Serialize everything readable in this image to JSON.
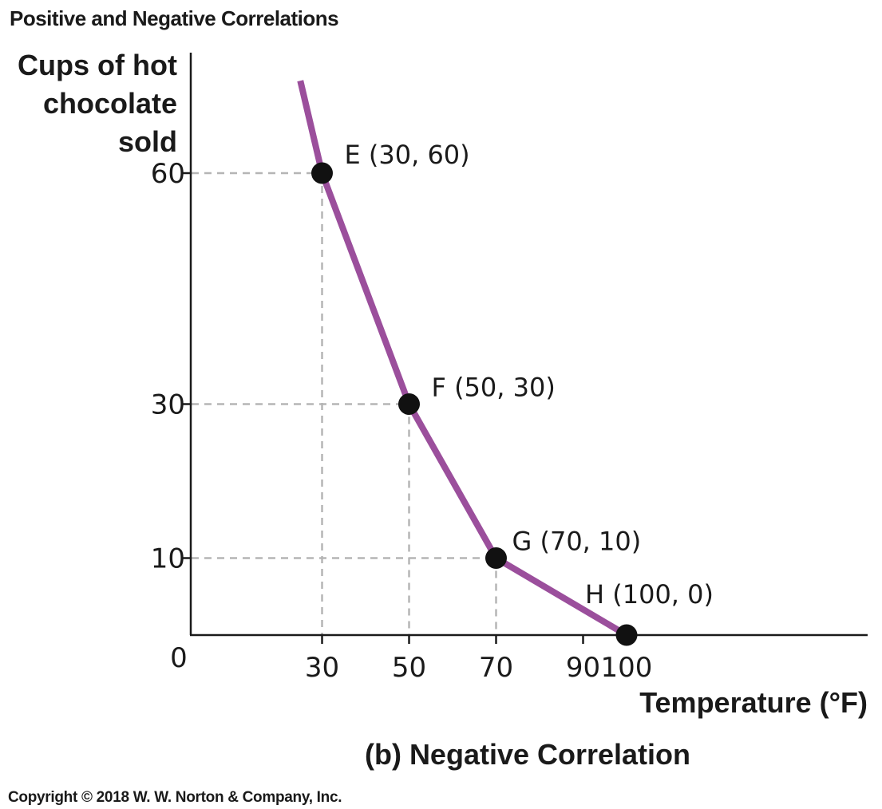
{
  "header": {
    "title": "Positive and Negative Correlations"
  },
  "footer": {
    "copyright": "Copyright © 2018 W. W. Norton & Company, Inc."
  },
  "colors": {
    "line": "#9b4f9c",
    "point": "#111111",
    "guide": "#b5b5b5",
    "axis": "#1a1a1a"
  },
  "chart_data": {
    "type": "line",
    "caption": "(b) Negative Correlation",
    "ylabel_lines": [
      "Cups of hot",
      "chocolate",
      "sold"
    ],
    "xlabel": "Temperature (°F)",
    "origin_label": "0",
    "xlim": [
      0,
      118
    ],
    "ylim": [
      0,
      85
    ],
    "x_ticks": [
      30,
      50,
      70,
      90,
      100
    ],
    "y_ticks": [
      10,
      30,
      60
    ],
    "grid": false,
    "series": [
      {
        "points": [
          {
            "x": 25,
            "y": 72,
            "marker": false
          },
          {
            "x": 30,
            "y": 60,
            "marker": true,
            "label": "E (30, 60)"
          },
          {
            "x": 50,
            "y": 30,
            "marker": true,
            "label": "F (50, 30)"
          },
          {
            "x": 70,
            "y": 10,
            "marker": true,
            "label": "G (70, 10)"
          },
          {
            "x": 100,
            "y": 0,
            "marker": true,
            "label": "H (100, 0)"
          }
        ]
      }
    ],
    "guide_lines": [
      {
        "x": 30,
        "y": 60
      },
      {
        "x": 50,
        "y": 30
      },
      {
        "x": 70,
        "y": 10
      }
    ]
  }
}
